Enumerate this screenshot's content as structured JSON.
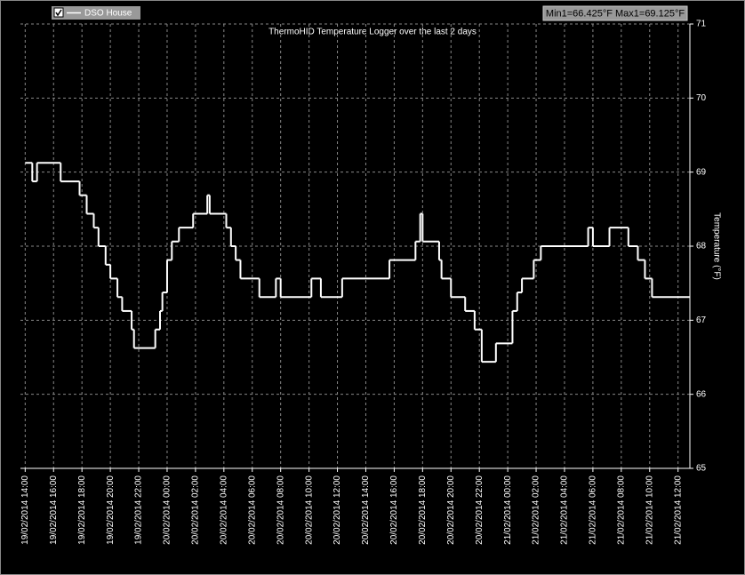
{
  "chart_data": {
    "type": "line",
    "title": "ThermoHID Temperature Logger over the last 2 days",
    "y_label": "Temperature (°F)",
    "annotation": "Min1=66.425°F Max1=69.125°F",
    "legend_position": "upper left",
    "grid": true,
    "step": true,
    "xlim": [
      "19/02/2014 13:40",
      "21/02/2014 12:50"
    ],
    "xticks": [
      "19/02/2014 14:00",
      "19/02/2014 16:00",
      "19/02/2014 18:00",
      "19/02/2014 20:00",
      "19/02/2014 22:00",
      "20/02/2014 00:00",
      "20/02/2014 02:00",
      "20/02/2014 04:00",
      "20/02/2014 06:00",
      "20/02/2014 08:00",
      "20/02/2014 10:00",
      "20/02/2014 12:00",
      "20/02/2014 14:00",
      "20/02/2014 16:00",
      "20/02/2014 18:00",
      "20/02/2014 20:00",
      "20/02/2014 22:00",
      "21/02/2014 00:00",
      "21/02/2014 02:00",
      "21/02/2014 04:00",
      "21/02/2014 06:00",
      "21/02/2014 08:00",
      "21/02/2014 10:00",
      "21/02/2014 12:00"
    ],
    "ylim": [
      65,
      71
    ],
    "yticks": [
      65,
      66,
      67,
      68,
      69,
      70,
      71
    ],
    "x": [
      "19/02/2014 14:00",
      "19/02/2014 14:30",
      "19/02/2014 14:50",
      "19/02/2014 16:30",
      "19/02/2014 17:50",
      "19/02/2014 18:20",
      "19/02/2014 18:50",
      "19/02/2014 19:10",
      "19/02/2014 19:40",
      "19/02/2014 20:00",
      "19/02/2014 20:30",
      "19/02/2014 20:50",
      "19/02/2014 21:30",
      "19/02/2014 21:40",
      "19/02/2014 23:10",
      "19/02/2014 23:30",
      "19/02/2014 23:40",
      "20/02/2014 00:00",
      "20/02/2014 00:20",
      "20/02/2014 00:50",
      "20/02/2014 01:50",
      "20/02/2014 02:50",
      "20/02/2014 03:00",
      "20/02/2014 04:10",
      "20/02/2014 04:30",
      "20/02/2014 04:50",
      "20/02/2014 05:10",
      "20/02/2014 06:30",
      "20/02/2014 07:40",
      "20/02/2014 08:00",
      "20/02/2014 10:10",
      "20/02/2014 10:50",
      "20/02/2014 12:20",
      "20/02/2014 15:40",
      "20/02/2014 17:30",
      "20/02/2014 17:50",
      "20/02/2014 18:00",
      "20/02/2014 19:10",
      "20/02/2014 19:20",
      "20/02/2014 20:00",
      "20/02/2014 21:00",
      "20/02/2014 21:40",
      "20/02/2014 22:10",
      "20/02/2014 23:10",
      "21/02/2014 00:20",
      "21/02/2014 00:40",
      "21/02/2014 01:00",
      "21/02/2014 01:50",
      "21/02/2014 02:20",
      "21/02/2014 05:40",
      "21/02/2014 06:00",
      "21/02/2014 07:10",
      "21/02/2014 08:30",
      "21/02/2014 09:10",
      "21/02/2014 09:40",
      "21/02/2014 10:10",
      "21/02/2014 12:50"
    ],
    "series": [
      {
        "name": "DSO House",
        "color": "#ffffff",
        "values": [
          69.125,
          68.875,
          69.125,
          68.875,
          68.688,
          68.438,
          68.25,
          68.0,
          67.75,
          67.563,
          67.313,
          67.125,
          66.875,
          66.625,
          66.875,
          67.125,
          67.375,
          67.813,
          68.063,
          68.25,
          68.438,
          68.688,
          68.438,
          68.25,
          68.0,
          67.813,
          67.563,
          67.313,
          67.563,
          67.313,
          67.563,
          67.313,
          67.563,
          67.813,
          68.063,
          68.438,
          68.063,
          67.813,
          67.563,
          67.313,
          67.125,
          66.875,
          66.438,
          66.688,
          67.125,
          67.375,
          67.563,
          67.813,
          68.0,
          68.25,
          68.0,
          68.25,
          68.0,
          67.813,
          67.563,
          67.313,
          67.313
        ]
      }
    ]
  }
}
